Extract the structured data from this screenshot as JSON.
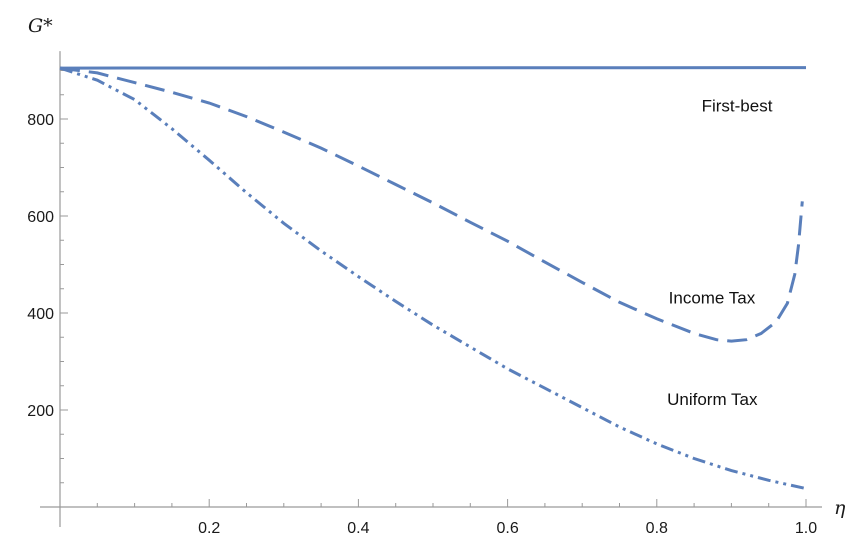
{
  "chart_data": {
    "type": "line",
    "xlabel": "η",
    "ylabel": "G*",
    "xlim": [
      0,
      1.0
    ],
    "ylim": [
      0,
      940
    ],
    "x_ticks": [
      {
        "value": 0.2,
        "label": "0.2"
      },
      {
        "value": 0.4,
        "label": "0.4"
      },
      {
        "value": 0.6,
        "label": "0.6"
      },
      {
        "value": 0.8,
        "label": "0.8"
      },
      {
        "value": 1.0,
        "label": "1.0"
      }
    ],
    "y_ticks": [
      {
        "value": 200,
        "label": "200"
      },
      {
        "value": 400,
        "label": "400"
      },
      {
        "value": 600,
        "label": "600"
      },
      {
        "value": 800,
        "label": "800"
      }
    ],
    "x_minor_step": 0.05,
    "y_minor_step": 50,
    "grid": false,
    "line_color": "#5a7fbb",
    "series": [
      {
        "name": "First-best",
        "dash": "solid",
        "label_at": {
          "x": 0.955,
          "y": 815
        },
        "points": [
          [
            0.0,
            905
          ],
          [
            1.0,
            906
          ]
        ]
      },
      {
        "name": "Income Tax",
        "dash": "dashed",
        "label_at": {
          "x": 0.932,
          "y": 420
        },
        "points": [
          [
            0.0,
            905
          ],
          [
            0.05,
            895
          ],
          [
            0.1,
            875
          ],
          [
            0.15,
            855
          ],
          [
            0.2,
            833
          ],
          [
            0.25,
            805
          ],
          [
            0.3,
            773
          ],
          [
            0.35,
            740
          ],
          [
            0.4,
            703
          ],
          [
            0.45,
            665
          ],
          [
            0.5,
            627
          ],
          [
            0.55,
            587
          ],
          [
            0.6,
            548
          ],
          [
            0.65,
            505
          ],
          [
            0.7,
            463
          ],
          [
            0.75,
            422
          ],
          [
            0.8,
            388
          ],
          [
            0.85,
            358
          ],
          [
            0.88,
            345
          ],
          [
            0.9,
            342
          ],
          [
            0.92,
            345
          ],
          [
            0.94,
            358
          ],
          [
            0.96,
            382
          ],
          [
            0.975,
            420
          ],
          [
            0.985,
            480
          ],
          [
            0.99,
            540
          ],
          [
            0.995,
            630
          ]
        ]
      },
      {
        "name": "Uniform Tax",
        "dash": "dashdotdot",
        "label_at": {
          "x": 0.935,
          "y": 210
        },
        "points": [
          [
            0.0,
            905
          ],
          [
            0.05,
            880
          ],
          [
            0.1,
            840
          ],
          [
            0.15,
            780
          ],
          [
            0.2,
            715
          ],
          [
            0.25,
            648
          ],
          [
            0.3,
            585
          ],
          [
            0.35,
            528
          ],
          [
            0.4,
            475
          ],
          [
            0.45,
            424
          ],
          [
            0.5,
            375
          ],
          [
            0.55,
            330
          ],
          [
            0.6,
            285
          ],
          [
            0.65,
            245
          ],
          [
            0.7,
            205
          ],
          [
            0.75,
            165
          ],
          [
            0.8,
            130
          ],
          [
            0.85,
            100
          ],
          [
            0.9,
            75
          ],
          [
            0.95,
            55
          ],
          [
            1.0,
            38
          ]
        ]
      }
    ]
  }
}
